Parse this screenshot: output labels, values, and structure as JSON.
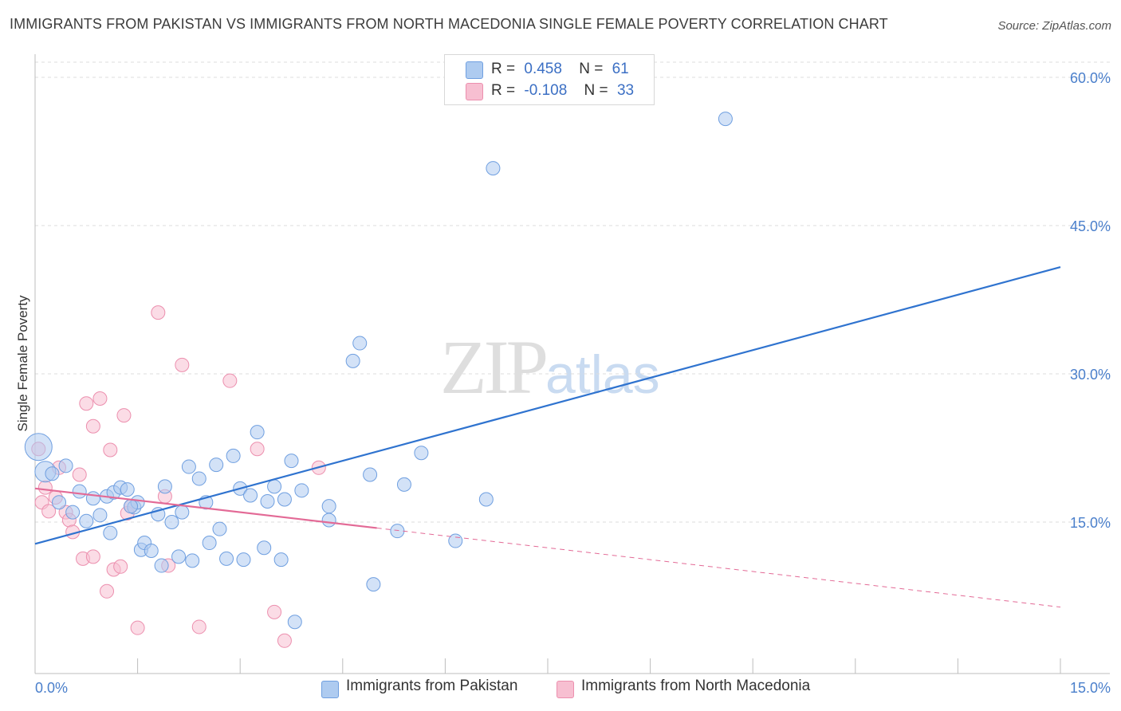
{
  "title": "IMMIGRANTS FROM PAKISTAN VS IMMIGRANTS FROM NORTH MACEDONIA SINGLE FEMALE POVERTY CORRELATION CHART",
  "source": "Source: ZipAtlas.com",
  "watermark": {
    "zip": "ZIP",
    "atlas": "atlas"
  },
  "legend_top": {
    "rows": [
      {
        "r_label": "R =",
        "r_value": "0.458",
        "n_label": "N =",
        "n_value": "61"
      },
      {
        "r_label": "R =",
        "r_value": "-0.108",
        "n_label": "N =",
        "n_value": "33"
      }
    ]
  },
  "colors": {
    "pakistan_fill": "#aecbf0",
    "pakistan_stroke": "#6f9fe0",
    "pakistan_line": "#2f73cf",
    "macedonia_fill": "#f7bfd1",
    "macedonia_stroke": "#ec8fae",
    "macedonia_line": "#e36a96",
    "tick_text": "#4a7fcb",
    "grid": "#dddddd"
  },
  "chart_data": {
    "type": "scatter",
    "title": "IMMIGRANTS FROM PAKISTAN VS IMMIGRANTS FROM NORTH MACEDONIA SINGLE FEMALE POVERTY CORRELATION CHART",
    "xlabel": "",
    "ylabel": "Single Female Poverty",
    "xlim": [
      0,
      15
    ],
    "ylim": [
      0,
      60
    ],
    "x_ticks": [
      "0.0%",
      "15.0%"
    ],
    "y_ticks": [
      {
        "value": 15,
        "label": "15.0%"
      },
      {
        "value": 30,
        "label": "30.0%"
      },
      {
        "value": 45,
        "label": "45.0%"
      },
      {
        "value": 60,
        "label": "60.0%"
      }
    ],
    "grid": "horizontal dashed",
    "legend_position": "bottom",
    "series": [
      {
        "name": "Immigrants from Pakistan",
        "r": 0.458,
        "n": 61,
        "trend": {
          "x": [
            0,
            15
          ],
          "y": [
            12.8,
            40.8
          ],
          "style": "solid"
        },
        "points": [
          {
            "x": 0.05,
            "y": 22.6,
            "big": 1
          },
          {
            "x": 0.15,
            "y": 20.1,
            "big": 1
          },
          {
            "x": 0.25,
            "y": 19.9
          },
          {
            "x": 0.35,
            "y": 17.0
          },
          {
            "x": 0.45,
            "y": 20.7
          },
          {
            "x": 0.55,
            "y": 16.0
          },
          {
            "x": 0.65,
            "y": 18.1
          },
          {
            "x": 0.75,
            "y": 15.1
          },
          {
            "x": 0.85,
            "y": 17.4
          },
          {
            "x": 0.95,
            "y": 15.7
          },
          {
            "x": 1.05,
            "y": 17.6
          },
          {
            "x": 1.1,
            "y": 13.9
          },
          {
            "x": 1.15,
            "y": 18.0
          },
          {
            "x": 1.25,
            "y": 18.5
          },
          {
            "x": 1.35,
            "y": 18.3
          },
          {
            "x": 1.45,
            "y": 16.5
          },
          {
            "x": 1.5,
            "y": 17.0
          },
          {
            "x": 1.55,
            "y": 12.2
          },
          {
            "x": 1.6,
            "y": 12.9
          },
          {
            "x": 1.7,
            "y": 12.1
          },
          {
            "x": 1.8,
            "y": 15.8
          },
          {
            "x": 1.85,
            "y": 10.6
          },
          {
            "x": 1.9,
            "y": 18.6
          },
          {
            "x": 2.0,
            "y": 15.0
          },
          {
            "x": 2.1,
            "y": 11.5
          },
          {
            "x": 2.15,
            "y": 16.0
          },
          {
            "x": 2.25,
            "y": 20.6
          },
          {
            "x": 2.3,
            "y": 11.1
          },
          {
            "x": 2.4,
            "y": 19.4
          },
          {
            "x": 2.5,
            "y": 17.0
          },
          {
            "x": 2.55,
            "y": 12.9
          },
          {
            "x": 2.65,
            "y": 20.8
          },
          {
            "x": 2.7,
            "y": 14.3
          },
          {
            "x": 2.8,
            "y": 11.3
          },
          {
            "x": 2.9,
            "y": 21.7
          },
          {
            "x": 3.0,
            "y": 18.4
          },
          {
            "x": 3.05,
            "y": 11.2
          },
          {
            "x": 3.15,
            "y": 17.7
          },
          {
            "x": 3.25,
            "y": 24.1
          },
          {
            "x": 3.35,
            "y": 12.4
          },
          {
            "x": 3.4,
            "y": 17.1
          },
          {
            "x": 3.5,
            "y": 18.6
          },
          {
            "x": 3.6,
            "y": 11.2
          },
          {
            "x": 3.65,
            "y": 17.3
          },
          {
            "x": 3.75,
            "y": 21.2
          },
          {
            "x": 3.8,
            "y": 4.9
          },
          {
            "x": 3.9,
            "y": 18.2
          },
          {
            "x": 4.3,
            "y": 16.6
          },
          {
            "x": 4.3,
            "y": 15.2
          },
          {
            "x": 4.65,
            "y": 31.3
          },
          {
            "x": 4.75,
            "y": 33.1
          },
          {
            "x": 4.9,
            "y": 19.8
          },
          {
            "x": 4.95,
            "y": 8.7
          },
          {
            "x": 5.3,
            "y": 14.1
          },
          {
            "x": 5.4,
            "y": 18.8
          },
          {
            "x": 5.65,
            "y": 22.0
          },
          {
            "x": 6.15,
            "y": 13.1
          },
          {
            "x": 6.6,
            "y": 17.3
          },
          {
            "x": 6.7,
            "y": 50.8
          },
          {
            "x": 10.1,
            "y": 55.8
          },
          {
            "x": 1.4,
            "y": 16.6
          }
        ]
      },
      {
        "name": "Immigrants from North Macedonia",
        "r": -0.108,
        "n": 33,
        "trend": {
          "x": [
            0,
            5
          ],
          "y": [
            18.4,
            14.4
          ],
          "x_extended": [
            5,
            15
          ],
          "y_extended": [
            14.4,
            6.4
          ],
          "style": "solid then dashed"
        },
        "points": [
          {
            "x": 0.05,
            "y": 22.4
          },
          {
            "x": 0.1,
            "y": 17.0
          },
          {
            "x": 0.15,
            "y": 18.5
          },
          {
            "x": 0.2,
            "y": 16.1
          },
          {
            "x": 0.3,
            "y": 17.5
          },
          {
            "x": 0.35,
            "y": 20.5
          },
          {
            "x": 0.45,
            "y": 16.0
          },
          {
            "x": 0.5,
            "y": 15.2
          },
          {
            "x": 0.55,
            "y": 14.0
          },
          {
            "x": 0.65,
            "y": 19.8
          },
          {
            "x": 0.7,
            "y": 11.3
          },
          {
            "x": 0.75,
            "y": 27.0
          },
          {
            "x": 0.85,
            "y": 11.5
          },
          {
            "x": 0.85,
            "y": 24.7
          },
          {
            "x": 0.95,
            "y": 27.5
          },
          {
            "x": 1.05,
            "y": 8.0
          },
          {
            "x": 1.1,
            "y": 22.3
          },
          {
            "x": 1.15,
            "y": 10.2
          },
          {
            "x": 1.25,
            "y": 10.5
          },
          {
            "x": 1.3,
            "y": 25.8
          },
          {
            "x": 1.35,
            "y": 15.9
          },
          {
            "x": 1.4,
            "y": 16.6
          },
          {
            "x": 1.5,
            "y": 4.3
          },
          {
            "x": 1.8,
            "y": 36.2
          },
          {
            "x": 1.9,
            "y": 17.6
          },
          {
            "x": 1.95,
            "y": 10.6
          },
          {
            "x": 2.15,
            "y": 30.9
          },
          {
            "x": 2.4,
            "y": 4.4
          },
          {
            "x": 2.85,
            "y": 29.3
          },
          {
            "x": 3.25,
            "y": 22.4
          },
          {
            "x": 3.5,
            "y": 5.9
          },
          {
            "x": 3.65,
            "y": 3.0
          },
          {
            "x": 4.15,
            "y": 20.5
          }
        ]
      }
    ]
  }
}
